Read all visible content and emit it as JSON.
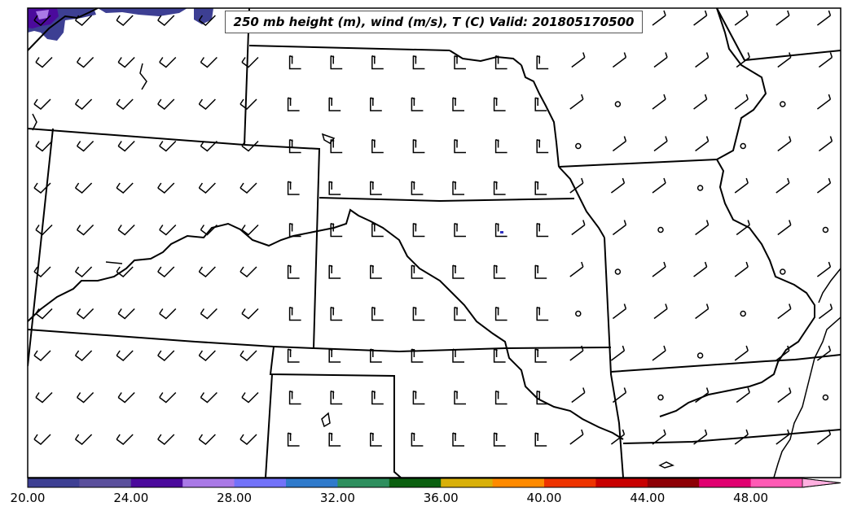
{
  "title": "250 mb height (m), wind (m/s), T (C) Valid: 201805170500",
  "colorbar": {
    "min": 20,
    "max": 52,
    "step": 2,
    "extend": "max",
    "colors": [
      "#3d3f93",
      "#5a4f9c",
      "#4b0a9c",
      "#a979e6",
      "#7272f9",
      "#2f7acb",
      "#2e8f5e",
      "#0b6010",
      "#d8b00a",
      "#ff8a00",
      "#ee3300",
      "#c80000",
      "#8d0005",
      "#e00070",
      "#ff5ab5",
      "#ffb0e0"
    ],
    "tick_labels": [
      "20.00",
      "24.00",
      "28.00",
      "32.00",
      "36.00",
      "40.00",
      "44.00",
      "48.00"
    ]
  },
  "map": {
    "region": "Central United States",
    "features": [
      "state borders",
      "rivers",
      "wind barbs",
      "temperature shading"
    ],
    "icons": [
      "wind-barb-icon",
      "calm-circle-icon"
    ]
  }
}
